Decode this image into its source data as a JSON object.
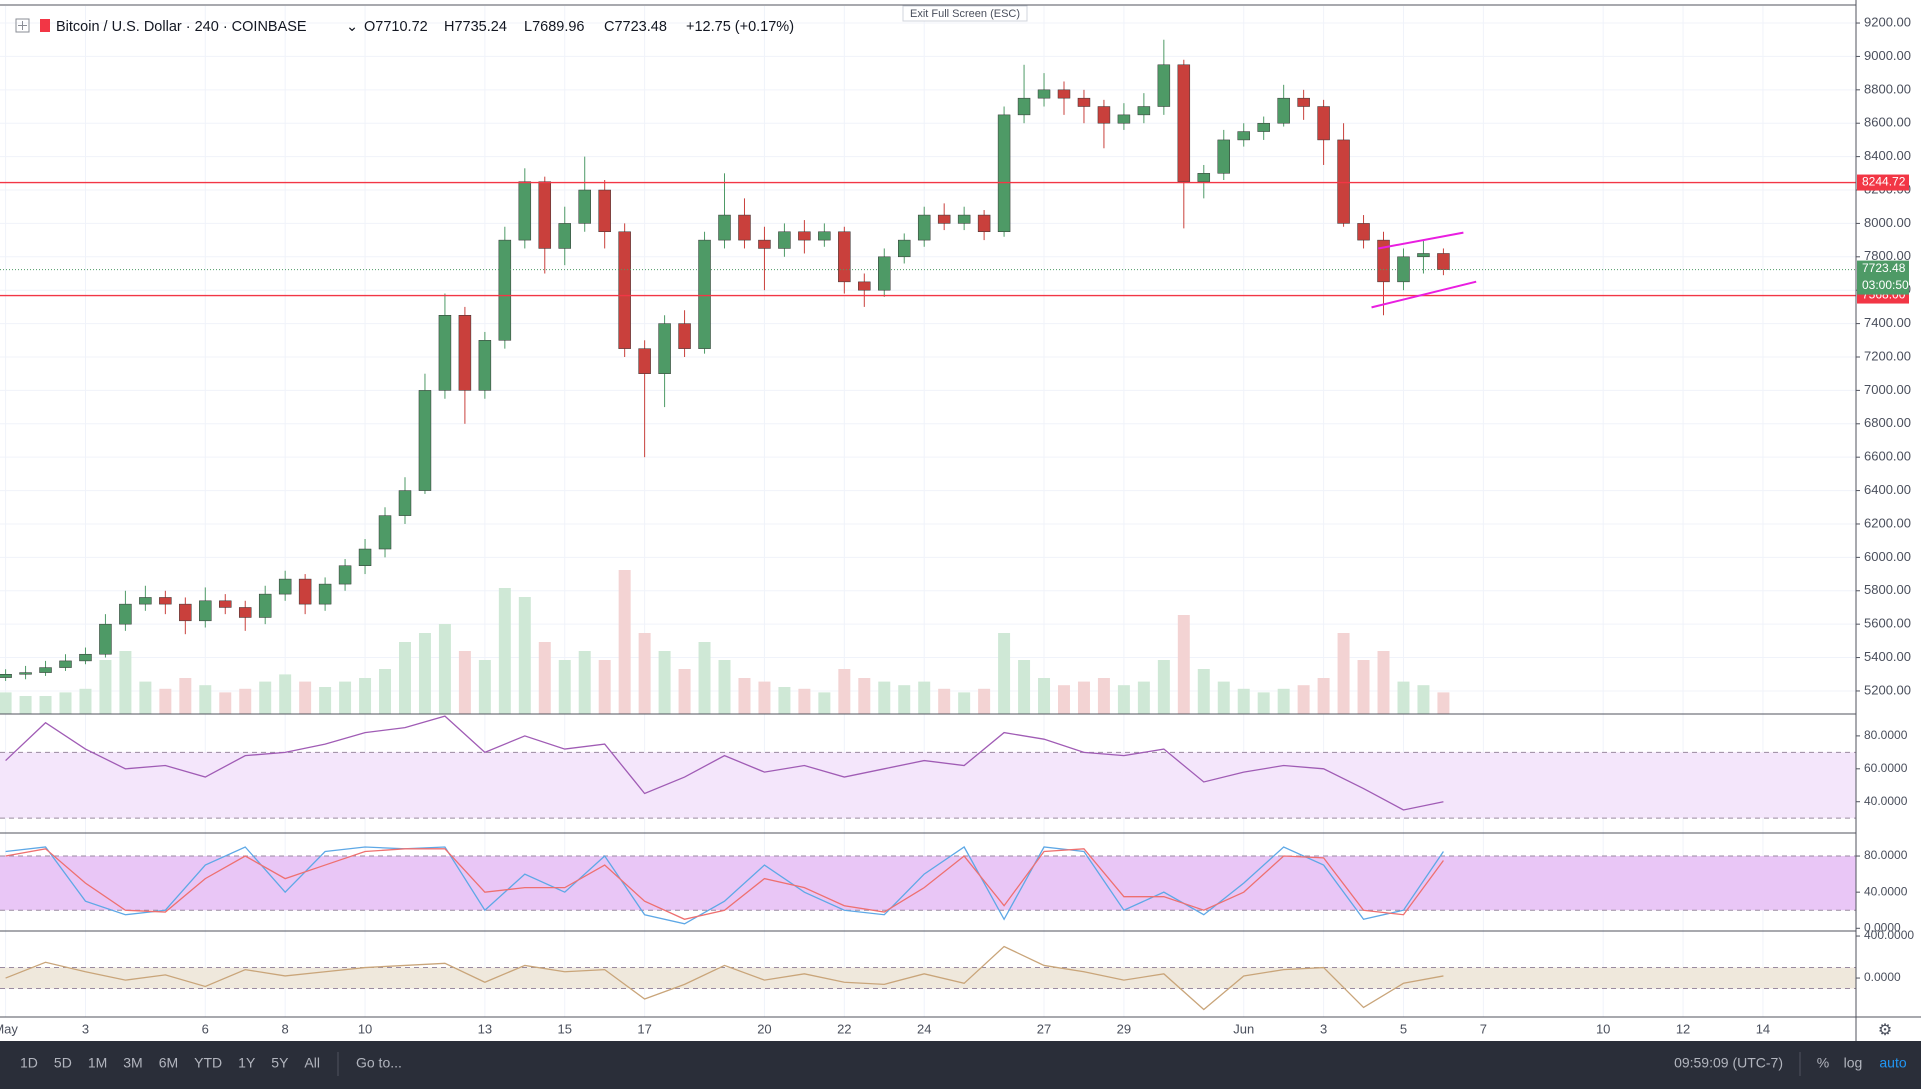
{
  "header": {
    "symbol": "Bitcoin / U.S. Dollar · 240 · COINBASE",
    "open": "O7710.72",
    "high": "H7735.24",
    "low": "L7689.96",
    "close": "C7723.48",
    "change": "+12.75 (+0.17%)",
    "exit": "Exit Full Screen (ESC)"
  },
  "toolbar": {
    "ranges": [
      "1D",
      "5D",
      "1M",
      "3M",
      "6M",
      "YTD",
      "1Y",
      "5Y",
      "All"
    ],
    "goto": "Go to...",
    "clock": "09:59:09 (UTC-7)",
    "scale_buttons": [
      "%",
      "log",
      "auto"
    ]
  },
  "chart_data": {
    "type": "candlestick",
    "x": [
      0,
      0.5,
      1,
      1.5,
      2,
      2.5,
      3,
      3.5,
      4,
      4.5,
      5,
      5.5,
      6,
      6.5,
      7,
      7.5,
      8,
      8.5,
      9,
      9.5,
      10,
      10.5,
      11,
      11.5,
      12,
      12.5,
      13,
      13.5,
      14,
      14.5,
      15,
      15.5,
      16,
      16.5,
      17,
      17.5,
      18,
      18.5,
      19,
      19.5,
      20,
      20.5,
      21,
      21.5,
      22,
      22.5,
      23,
      23.5,
      24,
      24.5,
      25,
      25.5,
      26,
      26.5,
      27,
      27.5,
      28,
      28.5,
      29,
      29.5,
      30,
      30.5,
      31,
      31.5,
      32,
      32.5,
      33,
      33.5,
      34,
      34.5,
      35,
      35.5,
      36
    ],
    "ohlc": [
      [
        5280,
        5330,
        5260,
        5300
      ],
      [
        5300,
        5350,
        5270,
        5310
      ],
      [
        5310,
        5380,
        5290,
        5340
      ],
      [
        5340,
        5420,
        5320,
        5380
      ],
      [
        5380,
        5460,
        5360,
        5420
      ],
      [
        5420,
        5660,
        5400,
        5600
      ],
      [
        5600,
        5800,
        5560,
        5720
      ],
      [
        5720,
        5830,
        5680,
        5760
      ],
      [
        5760,
        5800,
        5660,
        5720
      ],
      [
        5720,
        5760,
        5540,
        5620
      ],
      [
        5620,
        5820,
        5580,
        5740
      ],
      [
        5740,
        5780,
        5660,
        5700
      ],
      [
        5700,
        5740,
        5560,
        5640
      ],
      [
        5640,
        5830,
        5600,
        5780
      ],
      [
        5780,
        5920,
        5740,
        5870
      ],
      [
        5870,
        5900,
        5660,
        5720
      ],
      [
        5720,
        5880,
        5680,
        5840
      ],
      [
        5840,
        5990,
        5800,
        5950
      ],
      [
        5950,
        6110,
        5900,
        6050
      ],
      [
        6050,
        6300,
        6000,
        6250
      ],
      [
        6250,
        6480,
        6200,
        6400
      ],
      [
        6400,
        7100,
        6380,
        7000
      ],
      [
        7000,
        7580,
        6950,
        7450
      ],
      [
        7450,
        7500,
        6800,
        7000
      ],
      [
        7000,
        7350,
        6950,
        7300
      ],
      [
        7300,
        7980,
        7250,
        7900
      ],
      [
        7900,
        8330,
        7850,
        8250
      ],
      [
        8250,
        8280,
        7700,
        7850
      ],
      [
        7850,
        8100,
        7750,
        8000
      ],
      [
        8000,
        8400,
        7950,
        8200
      ],
      [
        8200,
        8260,
        7850,
        7950
      ],
      [
        7950,
        8000,
        7200,
        7250
      ],
      [
        7250,
        7300,
        6600,
        7100
      ],
      [
        7100,
        7450,
        6900,
        7400
      ],
      [
        7400,
        7480,
        7200,
        7250
      ],
      [
        7250,
        7950,
        7220,
        7900
      ],
      [
        7900,
        8300,
        7850,
        8050
      ],
      [
        8050,
        8150,
        7850,
        7900
      ],
      [
        7900,
        7980,
        7600,
        7850
      ],
      [
        7850,
        8000,
        7800,
        7950
      ],
      [
        7950,
        8020,
        7820,
        7900
      ],
      [
        7900,
        8000,
        7860,
        7950
      ],
      [
        7950,
        7980,
        7580,
        7650
      ],
      [
        7650,
        7700,
        7500,
        7600
      ],
      [
        7600,
        7850,
        7560,
        7800
      ],
      [
        7800,
        7940,
        7760,
        7900
      ],
      [
        7900,
        8100,
        7860,
        8050
      ],
      [
        8050,
        8120,
        7960,
        8000
      ],
      [
        8000,
        8100,
        7960,
        8050
      ],
      [
        8050,
        8080,
        7900,
        7950
      ],
      [
        7950,
        8700,
        7920,
        8650
      ],
      [
        8650,
        8950,
        8600,
        8750
      ],
      [
        8750,
        8900,
        8700,
        8800
      ],
      [
        8800,
        8850,
        8650,
        8750
      ],
      [
        8750,
        8800,
        8600,
        8700
      ],
      [
        8700,
        8740,
        8450,
        8600
      ],
      [
        8600,
        8720,
        8560,
        8650
      ],
      [
        8650,
        8780,
        8600,
        8700
      ],
      [
        8700,
        9100,
        8650,
        8950
      ],
      [
        8950,
        8980,
        7970,
        8250
      ],
      [
        8250,
        8350,
        8150,
        8300
      ],
      [
        8300,
        8560,
        8260,
        8500
      ],
      [
        8500,
        8600,
        8460,
        8550
      ],
      [
        8550,
        8640,
        8500,
        8600
      ],
      [
        8600,
        8830,
        8580,
        8750
      ],
      [
        8750,
        8800,
        8620,
        8700
      ],
      [
        8700,
        8740,
        8350,
        8500
      ],
      [
        8500,
        8600,
        7980,
        8000
      ],
      [
        8000,
        8050,
        7850,
        7900
      ],
      [
        7900,
        7950,
        7450,
        7650
      ],
      [
        7650,
        7850,
        7600,
        7800
      ],
      [
        7800,
        7900,
        7700,
        7820
      ],
      [
        7820,
        7850,
        7689.96,
        7723.48
      ]
    ],
    "up_color": "#4e9a66",
    "down_color": "#c9403c",
    "ylim": [
      5062,
      9302
    ],
    "yticks": [
      {
        "value": 9200,
        "label": "9200.00"
      },
      {
        "value": 9000,
        "label": "9000.00"
      },
      {
        "value": 8800,
        "label": "8800.00"
      },
      {
        "value": 8600,
        "label": "8600.00"
      },
      {
        "value": 8400,
        "label": "8400.00"
      },
      {
        "value": 8200,
        "label": "8200.00"
      },
      {
        "value": 8000,
        "label": "8000.00"
      },
      {
        "value": 7800,
        "label": "7800.00"
      },
      {
        "value": 7600,
        "label": "7600.00"
      },
      {
        "value": 7400,
        "label": "7400.00"
      },
      {
        "value": 7200,
        "label": "7200.00"
      },
      {
        "value": 7000,
        "label": "7000.00"
      },
      {
        "value": 6800,
        "label": "6800.00"
      },
      {
        "value": 6600,
        "label": "6600.00"
      },
      {
        "value": 6400,
        "label": "6400.00"
      },
      {
        "value": 6200,
        "label": "6200.00"
      },
      {
        "value": 6000,
        "label": "6000.00"
      },
      {
        "value": 5800,
        "label": "5800.00"
      },
      {
        "value": 5600,
        "label": "5600.00"
      },
      {
        "value": 5400,
        "label": "5400.00"
      },
      {
        "value": 5200,
        "label": "5200.00"
      }
    ],
    "xlim": [
      -0.14,
      46.33
    ],
    "xticks": [
      {
        "value": 0,
        "label": "May"
      },
      {
        "value": 2,
        "label": "3"
      },
      {
        "value": 5,
        "label": "6"
      },
      {
        "value": 7,
        "label": "8"
      },
      {
        "value": 9,
        "label": "10"
      },
      {
        "value": 12,
        "label": "13"
      },
      {
        "value": 14,
        "label": "15"
      },
      {
        "value": 16,
        "label": "17"
      },
      {
        "value": 19,
        "label": "20"
      },
      {
        "value": 21,
        "label": "22"
      },
      {
        "value": 23,
        "label": "24"
      },
      {
        "value": 26,
        "label": "27"
      },
      {
        "value": 28,
        "label": "29"
      },
      {
        "value": 31,
        "label": "Jun"
      },
      {
        "value": 33,
        "label": "3"
      },
      {
        "value": 35,
        "label": "5"
      },
      {
        "value": 37,
        "label": "7"
      },
      {
        "value": 40,
        "label": "10"
      },
      {
        "value": 42,
        "label": "12"
      },
      {
        "value": 44,
        "label": "14"
      }
    ],
    "grid": true,
    "volume": {
      "ylim": [
        0,
        100
      ],
      "up_color": "#cfe8d6",
      "down_color": "#f3d3d3",
      "values": [
        12,
        10,
        10,
        12,
        14,
        30,
        35,
        18,
        14,
        20,
        16,
        12,
        14,
        18,
        22,
        18,
        15,
        18,
        20,
        25,
        40,
        45,
        50,
        35,
        30,
        70,
        65,
        40,
        30,
        35,
        30,
        80,
        45,
        35,
        25,
        40,
        30,
        20,
        18,
        15,
        14,
        12,
        25,
        20,
        18,
        16,
        18,
        14,
        12,
        14,
        45,
        30,
        20,
        16,
        18,
        20,
        16,
        18,
        30,
        55,
        25,
        18,
        14,
        12,
        14,
        16,
        20,
        45,
        30,
        35,
        18,
        16,
        12
      ]
    },
    "levels": [
      {
        "value": 8244.72,
        "label": "8244.72",
        "color": "#f23645"
      },
      {
        "value": 7568,
        "label": "7568.00",
        "color": "#f23645"
      }
    ],
    "last_price": {
      "value": 7723.48,
      "label": "7723.48",
      "countdown": "03:00:50",
      "color": "#4e9a66"
    },
    "trendlines": [
      {
        "x": [
          34.37,
          36.5
        ],
        "y": [
          7850,
          7945
        ],
        "color": "#e91ee0"
      },
      {
        "x": [
          34.2,
          36.82
        ],
        "y": [
          7497,
          7651
        ],
        "color": "#e91ee0"
      }
    ],
    "indicator_x": [
      0,
      1,
      2,
      3,
      4,
      5,
      6,
      7,
      8,
      9,
      10,
      11,
      12,
      13,
      14,
      15,
      16,
      17,
      18,
      19,
      20,
      21,
      22,
      23,
      24,
      25,
      26,
      27,
      28,
      29,
      30,
      31,
      32,
      33,
      34,
      35,
      36
    ],
    "indicators": [
      {
        "ylim": [
          21,
          93.3
        ],
        "yticks": [
          {
            "value": 80,
            "label": "80.0000"
          },
          {
            "value": 60,
            "label": "60.0000"
          },
          {
            "value": 40,
            "label": "40.0000"
          }
        ],
        "band": [
          30,
          70
        ],
        "band_color": "#f4e6fb",
        "series": [
          {
            "color": "#a05cb5",
            "values": [
              65,
              88,
              72,
              60,
              62,
              55,
              68,
              70,
              75,
              82,
              85,
              92,
              70,
              80,
              72,
              75,
              45,
              55,
              68,
              58,
              62,
              55,
              60,
              65,
              62,
              82,
              78,
              70,
              68,
              72,
              52,
              58,
              62,
              60,
              48,
              35,
              40
            ]
          }
        ]
      },
      {
        "ylim": [
          -3,
          105.5
        ],
        "yticks": [
          {
            "value": 80,
            "label": "80.0000"
          },
          {
            "value": 40,
            "label": "40.0000"
          },
          {
            "value": 0,
            "label": "0.0000"
          }
        ],
        "band": [
          20,
          80
        ],
        "band_color": "#e9c6f6",
        "series": [
          {
            "color": "#5ea8e6",
            "values": [
              85,
              90,
              30,
              15,
              20,
              70,
              90,
              40,
              85,
              90,
              88,
              90,
              20,
              60,
              40,
              80,
              15,
              5,
              30,
              70,
              40,
              20,
              15,
              60,
              90,
              10,
              90,
              85,
              20,
              40,
              15,
              50,
              90,
              70,
              10,
              20,
              85
            ]
          },
          {
            "color": "#ee7070",
            "values": [
              80,
              88,
              50,
              20,
              18,
              55,
              80,
              55,
              70,
              85,
              88,
              88,
              40,
              45,
              45,
              70,
              30,
              10,
              20,
              55,
              45,
              25,
              18,
              45,
              80,
              25,
              85,
              88,
              35,
              35,
              20,
              40,
              80,
              78,
              20,
              15,
              75
            ]
          }
        ]
      },
      {
        "ylim": [
          -371,
          448
        ],
        "yticks": [
          {
            "value": 400,
            "label": "400.0000"
          },
          {
            "value": 0,
            "label": "0.0000"
          }
        ],
        "band": [
          -100,
          100
        ],
        "band_color": "#efe8dc",
        "series": [
          {
            "color": "#c9a57a",
            "values": [
              0,
              150,
              60,
              -20,
              30,
              -80,
              80,
              20,
              60,
              100,
              120,
              140,
              -40,
              120,
              60,
              80,
              -200,
              -60,
              120,
              -20,
              40,
              -40,
              -60,
              40,
              -50,
              300,
              120,
              60,
              -20,
              40,
              -300,
              20,
              80,
              100,
              -280,
              -50,
              20
            ]
          }
        ]
      }
    ]
  }
}
